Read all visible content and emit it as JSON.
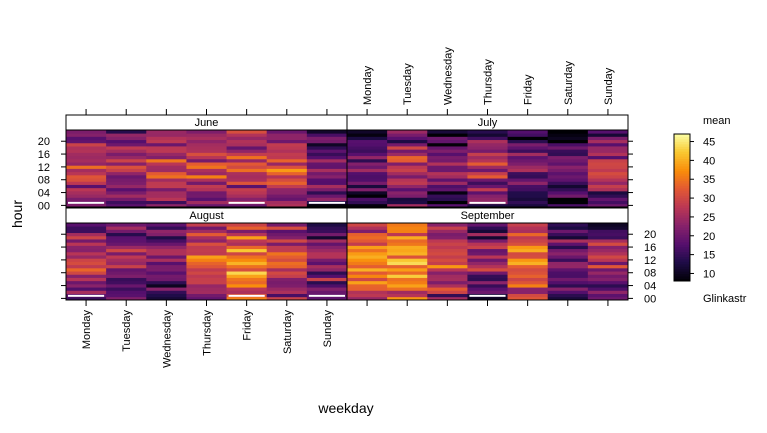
{
  "chart_data": {
    "type": "heatmap",
    "xlabel": "weekday",
    "ylabel": "hour",
    "weekdays": [
      "Monday",
      "Tuesday",
      "Wednesday",
      "Thursday",
      "Friday",
      "Saturday",
      "Sunday"
    ],
    "hour_ticks": [
      0,
      4,
      8,
      12,
      16,
      20
    ],
    "hour_tick_labels": [
      "00",
      "04",
      "08",
      "12",
      "16",
      "20"
    ],
    "hour_range": [
      0,
      23
    ],
    "panels": [
      {
        "month": "June",
        "weekday_means": [
          24,
          22,
          27,
          25,
          26,
          27,
          19
        ]
      },
      {
        "month": "July",
        "weekday_means": [
          16,
          23,
          17,
          22,
          18,
          15,
          22
        ]
      },
      {
        "month": "August",
        "weekday_means": [
          24,
          22,
          20,
          28,
          33,
          26,
          21
        ]
      },
      {
        "month": "September",
        "weekday_means": [
          33,
          35,
          27,
          19,
          30,
          18,
          21
        ]
      }
    ],
    "panel_layout": "2x2",
    "colorbar": {
      "title": "mean",
      "subtitle": "Glinkastr",
      "ticks": [
        10,
        15,
        20,
        25,
        30,
        35,
        40,
        45
      ],
      "range": [
        8,
        47
      ],
      "palette": "inferno"
    }
  }
}
